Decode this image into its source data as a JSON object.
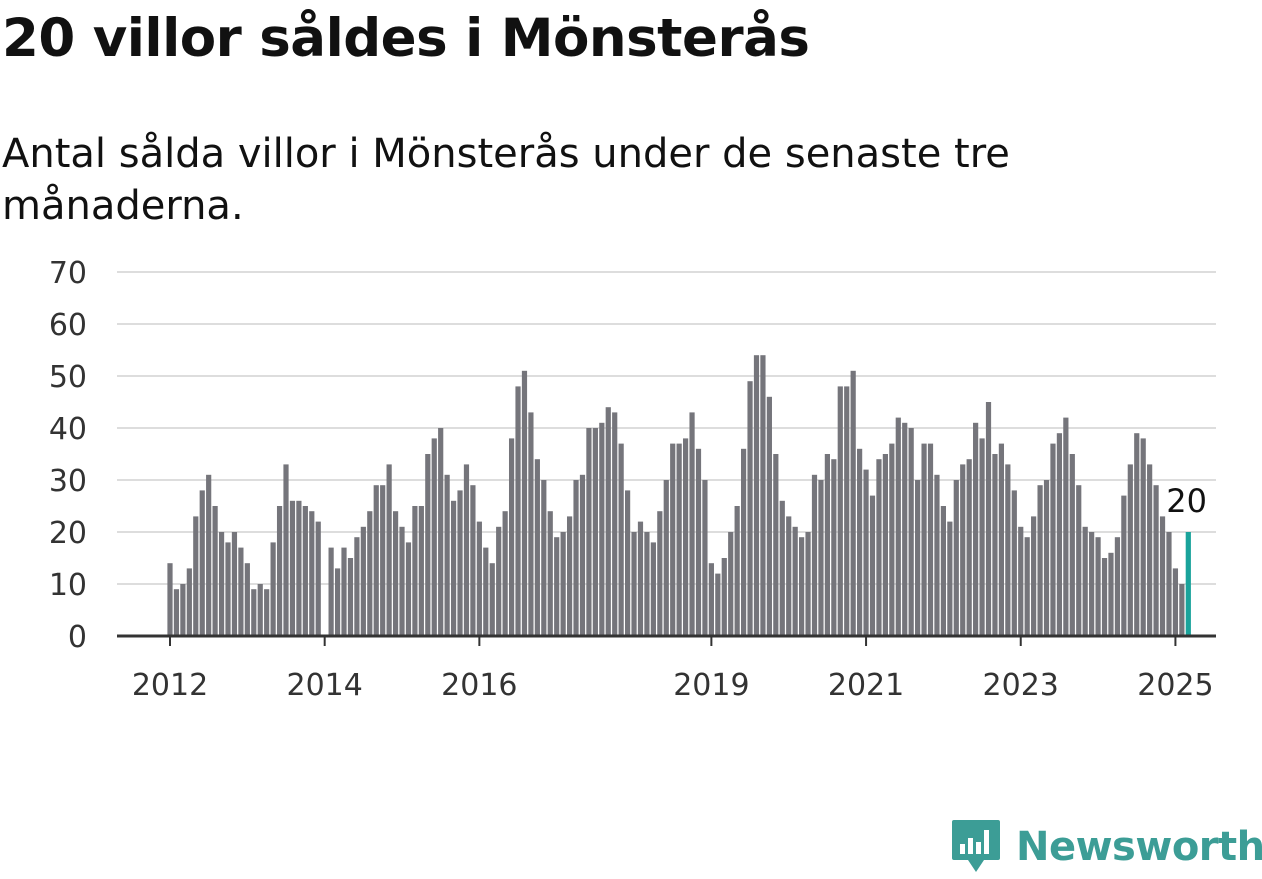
{
  "title": "20 villor såldes i Mönsterås",
  "subtitle": "Antal sålda villor i Mönsterås under de senaste tre månaderna.",
  "brand": "Newsworthy",
  "colors": {
    "bar": "#75757b",
    "highlight": "#1aa39b",
    "grid": "#dddddd",
    "axis": "#333333",
    "brand": "#3c9d96"
  },
  "chart_data": {
    "type": "bar",
    "title": "20 villor såldes i Mönsterås",
    "subtitle": "Antal sålda villor i Mönsterås under de senaste tre månaderna.",
    "xlabel": "",
    "ylabel": "",
    "ylim": [
      0,
      70
    ],
    "yticks": [
      "0",
      "10",
      "20",
      "30",
      "40",
      "50",
      "60",
      "70"
    ],
    "grid": true,
    "xticks": [
      {
        "label": "2012",
        "month": "2012-01"
      },
      {
        "label": "2014",
        "month": "2014-01"
      },
      {
        "label": "2016",
        "month": "2016-01"
      },
      {
        "label": "2019",
        "month": "2019-01"
      },
      {
        "label": "2021",
        "month": "2021-01"
      },
      {
        "label": "2023",
        "month": "2023-01"
      },
      {
        "label": "2025",
        "month": "2025-01"
      }
    ],
    "start_month": "2012-01",
    "end_month": "2025-03",
    "values": [
      14,
      9,
      10,
      13,
      23,
      28,
      31,
      25,
      20,
      18,
      20,
      17,
      14,
      9,
      10,
      9,
      18,
      25,
      33,
      26,
      26,
      25,
      24,
      22,
      0,
      17,
      13,
      17,
      15,
      19,
      21,
      24,
      29,
      29,
      33,
      24,
      21,
      18,
      25,
      25,
      35,
      38,
      40,
      31,
      26,
      28,
      33,
      29,
      22,
      17,
      14,
      21,
      24,
      38,
      48,
      51,
      43,
      34,
      30,
      24,
      19,
      20,
      23,
      30,
      31,
      40,
      40,
      41,
      44,
      43,
      37,
      28,
      20,
      22,
      20,
      18,
      24,
      30,
      37,
      37,
      38,
      43,
      36,
      30,
      14,
      12,
      15,
      20,
      25,
      36,
      49,
      54,
      54,
      46,
      35,
      26,
      23,
      21,
      19,
      20,
      31,
      30,
      35,
      34,
      48,
      48,
      51,
      36,
      32,
      27,
      34,
      35,
      37,
      42,
      41,
      40,
      30,
      37,
      37,
      31,
      25,
      22,
      30,
      33,
      34,
      41,
      38,
      45,
      35,
      37,
      33,
      28,
      21,
      19,
      23,
      29,
      30,
      37,
      39,
      42,
      35,
      29,
      21,
      20,
      19,
      15,
      16,
      19,
      27,
      33,
      39,
      38,
      33,
      29,
      23,
      20,
      13,
      10,
      20
    ],
    "highlight": {
      "month": "2025-03",
      "value": 20,
      "label": "20"
    }
  }
}
